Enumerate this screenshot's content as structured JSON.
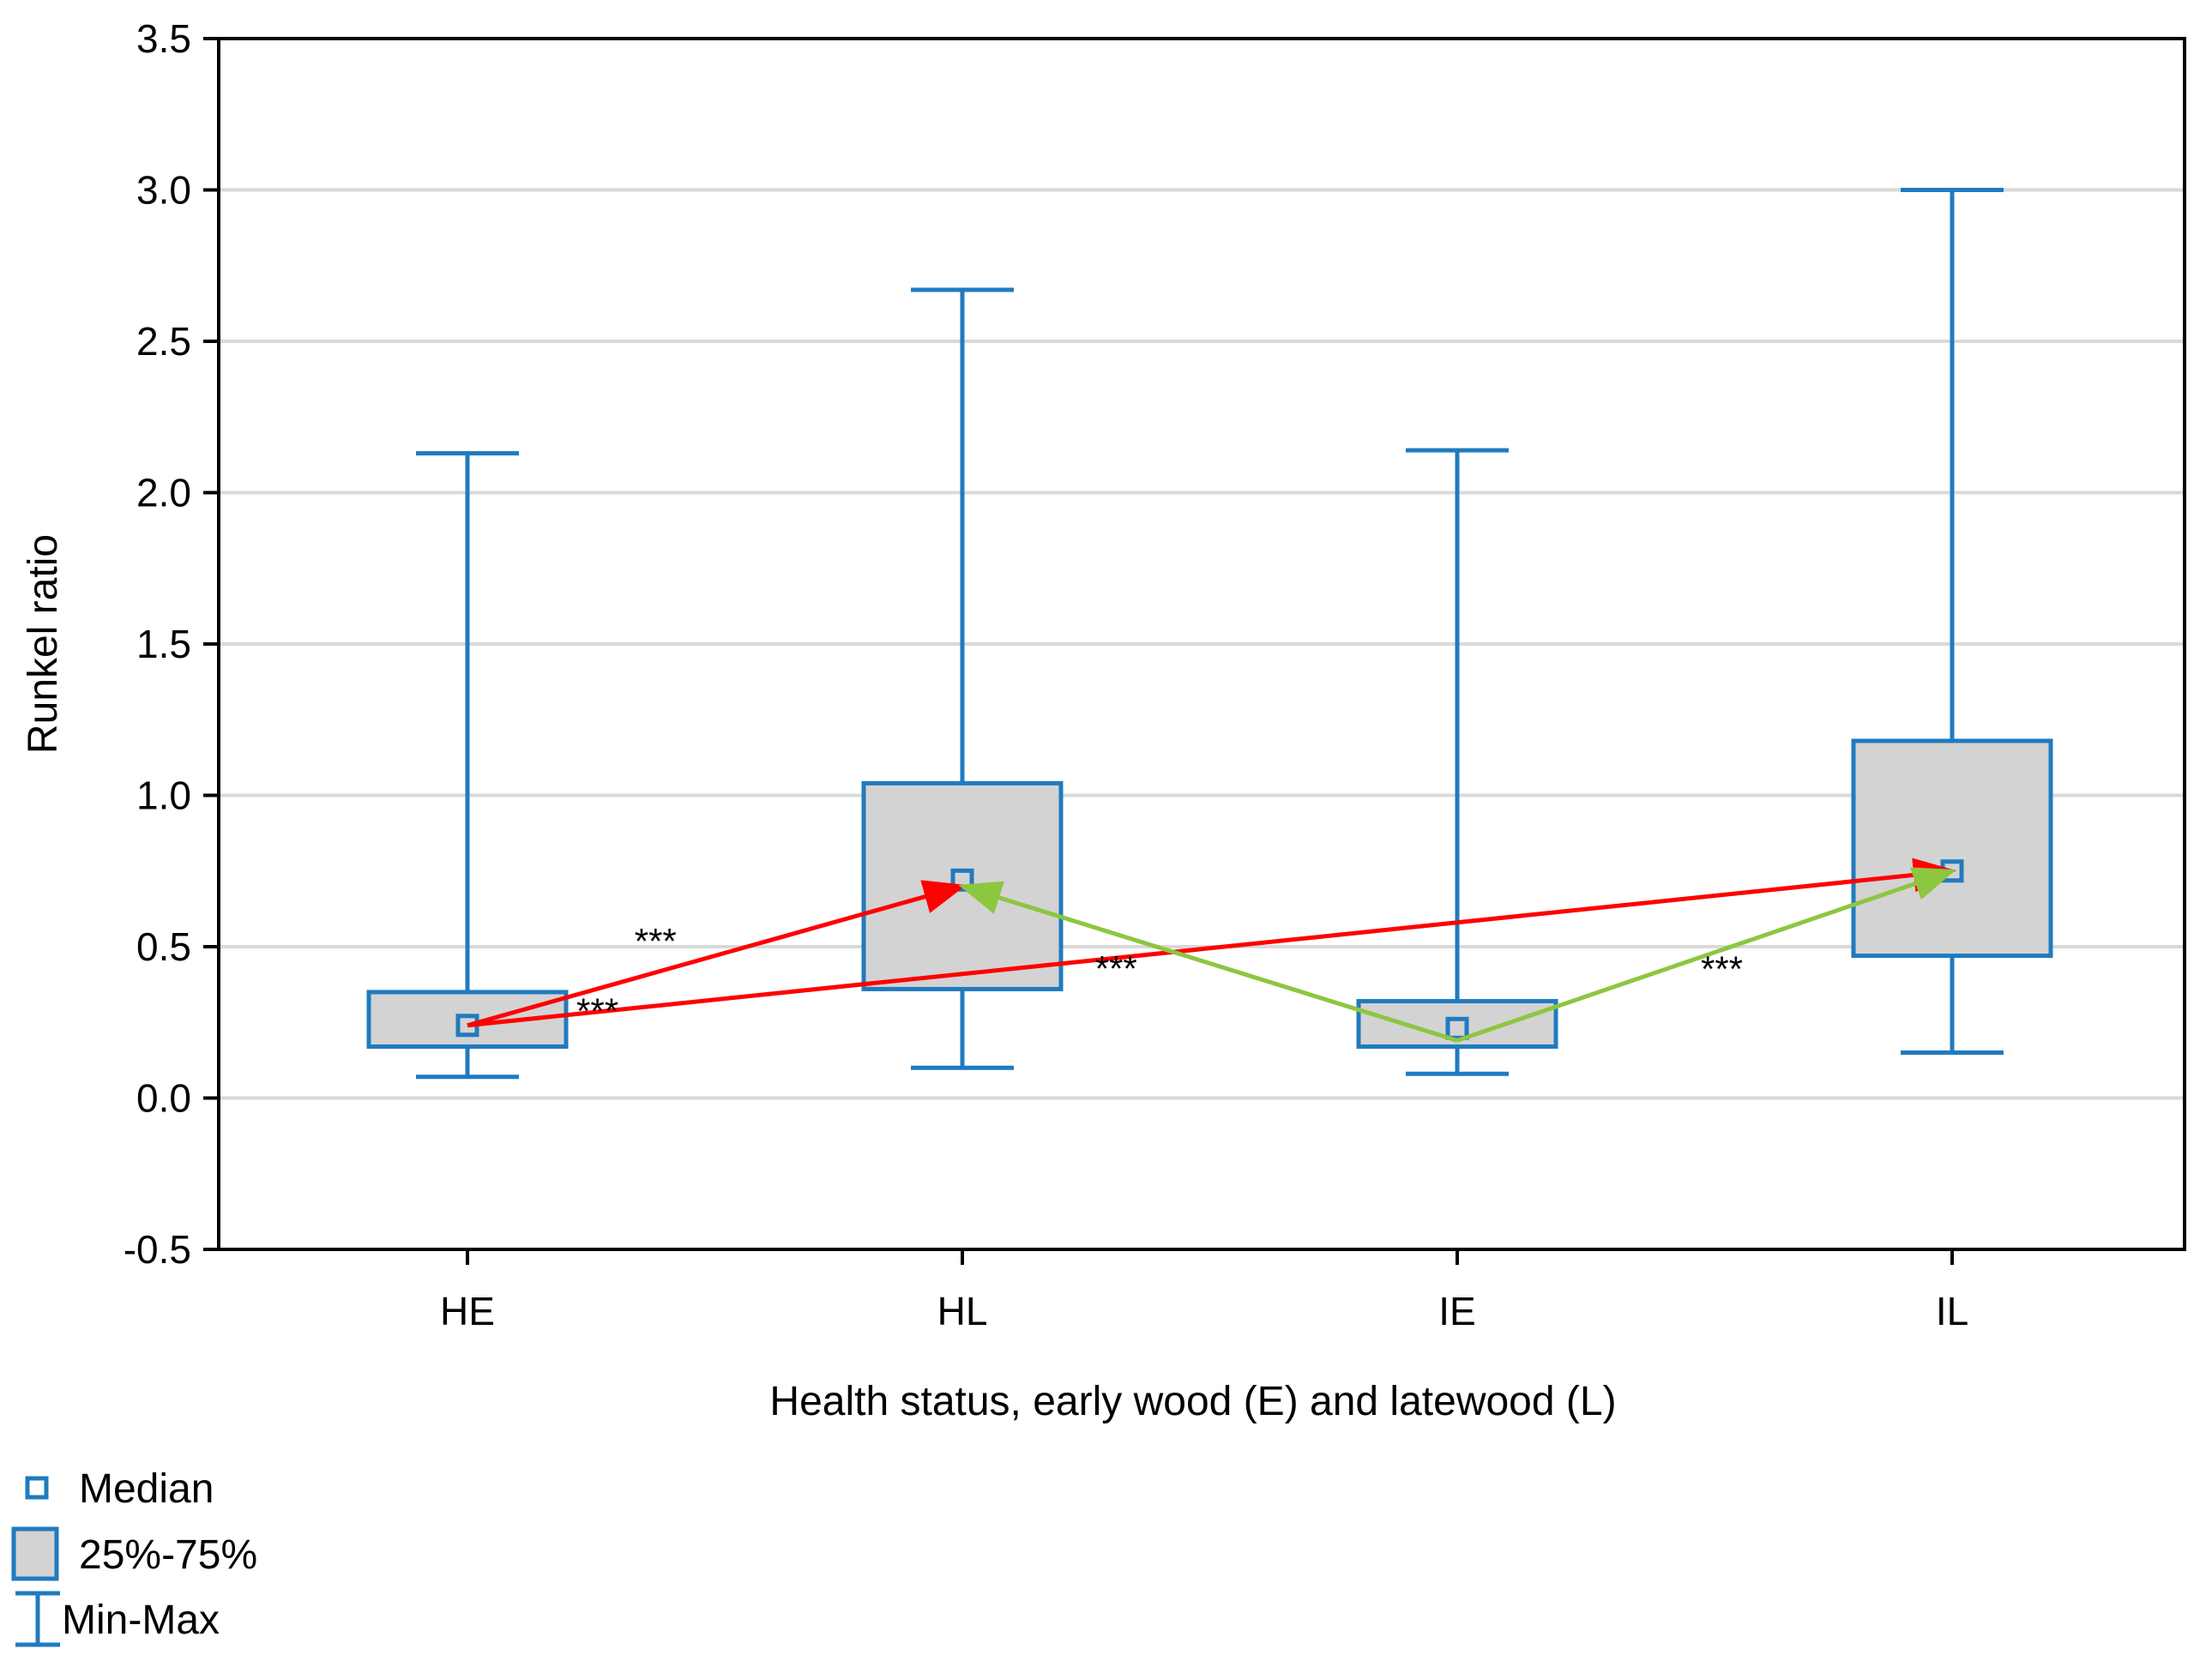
{
  "chart_data": {
    "type": "box",
    "title": "",
    "xlabel": "Health status, early wood (E) and latewood (L)",
    "ylabel": "Runkel ratio",
    "ylim": [
      -0.5,
      3.5
    ],
    "yticks": [
      -0.5,
      0.0,
      0.5,
      1.0,
      1.5,
      2.0,
      2.5,
      3.0,
      3.5
    ],
    "ytick_labels": [
      "-0.5",
      "0.0",
      "0.5",
      "1.0",
      "1.5",
      "2.0",
      "2.5",
      "3.0",
      "3.5"
    ],
    "grid": true,
    "categories": [
      "HE",
      "HL",
      "IE",
      "IL"
    ],
    "boxes": [
      {
        "category": "HE",
        "min": 0.07,
        "q1": 0.17,
        "median": 0.24,
        "q3": 0.35,
        "max": 2.13
      },
      {
        "category": "HL",
        "min": 0.1,
        "q1": 0.36,
        "median": 0.72,
        "q3": 1.04,
        "max": 2.67
      },
      {
        "category": "IE",
        "min": 0.08,
        "q1": 0.17,
        "median": 0.23,
        "q3": 0.32,
        "max": 2.14
      },
      {
        "category": "IL",
        "min": 0.15,
        "q1": 0.47,
        "median": 0.75,
        "q3": 1.18,
        "max": 3.0
      }
    ],
    "comparisons": [
      {
        "from": "HE",
        "to": "HL",
        "from_value": 0.24,
        "to_value": 0.7,
        "color": "#ff0000",
        "label": "***"
      },
      {
        "from": "HE",
        "to": "IL",
        "from_value": 0.24,
        "to_value": 0.75,
        "color": "#ff0000",
        "label": "***"
      },
      {
        "from": "IE",
        "to": "HL",
        "from_value": 0.19,
        "to_value": 0.7,
        "color": "#8dc63f",
        "label": "***"
      },
      {
        "from": "IE",
        "to": "IL",
        "from_value": 0.19,
        "to_value": 0.75,
        "color": "#8dc63f",
        "label": "***"
      }
    ],
    "legend": {
      "position": "bottom-left",
      "entries": [
        {
          "symbol": "median-marker",
          "label": "Median"
        },
        {
          "symbol": "box",
          "label": "25%-75%"
        },
        {
          "symbol": "whisker",
          "label": "Min-Max"
        }
      ]
    },
    "colors": {
      "box_stroke": "#1f7bbf",
      "box_fill": "#d3d3d3",
      "grid": "#d9d9d9",
      "axis": "#000000"
    }
  }
}
